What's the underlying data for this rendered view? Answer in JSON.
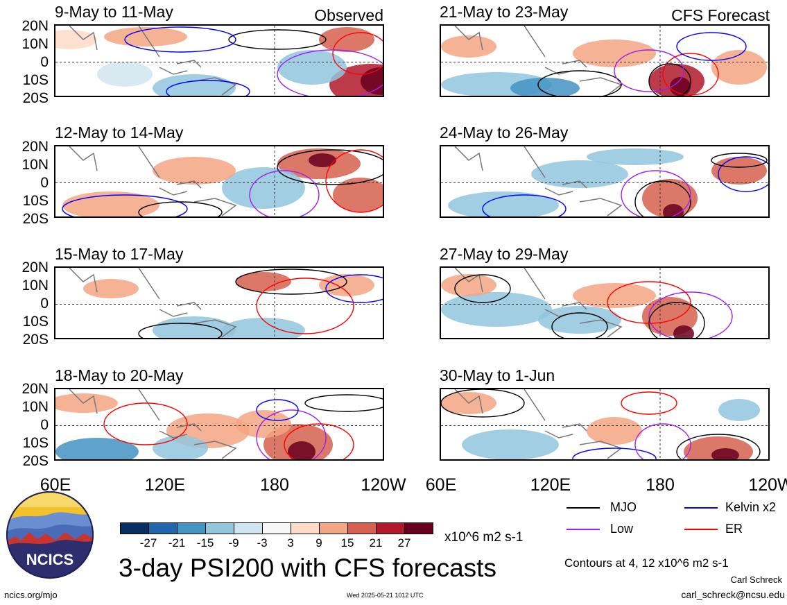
{
  "header": {
    "observed_label": "Observed",
    "forecast_label": "CFS Forecast"
  },
  "panels": [
    {
      "title": "9-May to 11-May"
    },
    {
      "title": "12-May to 14-May"
    },
    {
      "title": "15-May to 17-May"
    },
    {
      "title": "18-May to 20-May"
    },
    {
      "title": "21-May to 23-May"
    },
    {
      "title": "24-May to 26-May"
    },
    {
      "title": "27-May to 29-May"
    },
    {
      "title": "30-May to 1-Jun"
    }
  ],
  "axes": {
    "y_ticks": [
      "20N",
      "10N",
      "0",
      "10S",
      "20S"
    ],
    "x_ticks": [
      "60E",
      "120E",
      "180",
      "120W"
    ]
  },
  "legend": {
    "mjo": "MJO",
    "kelvin": "Kelvin x2",
    "low": "Low",
    "er": "ER",
    "colors": {
      "mjo": "#000000",
      "kelvin": "#0000ff",
      "low": "#a020f0",
      "er": "#ff0000"
    }
  },
  "colorbar": {
    "ticks": [
      "-27",
      "-21",
      "-15",
      "-9",
      "-3",
      "3",
      "9",
      "15",
      "21",
      "27"
    ],
    "colors": [
      "#053061",
      "#2166ac",
      "#4393c3",
      "#92c5de",
      "#d1e5f0",
      "#f7f7f7",
      "#fddbc7",
      "#f4a582",
      "#d6604d",
      "#b2182b",
      "#67001f"
    ],
    "units": "x10^6 m2 s-1"
  },
  "main_title": "3-day PSI200 with CFS forecasts",
  "contour_note": "Contours at 4, 12 x10^6 m2 s-1",
  "logo": {
    "text": "NCICS"
  },
  "footer": {
    "url": "ncics.org/mjo",
    "timestamp": "Wed 2025-05-21 1012 UTC",
    "author": "Carl Schreck",
    "email": "carl_schreck@ncsu.edu"
  }
}
